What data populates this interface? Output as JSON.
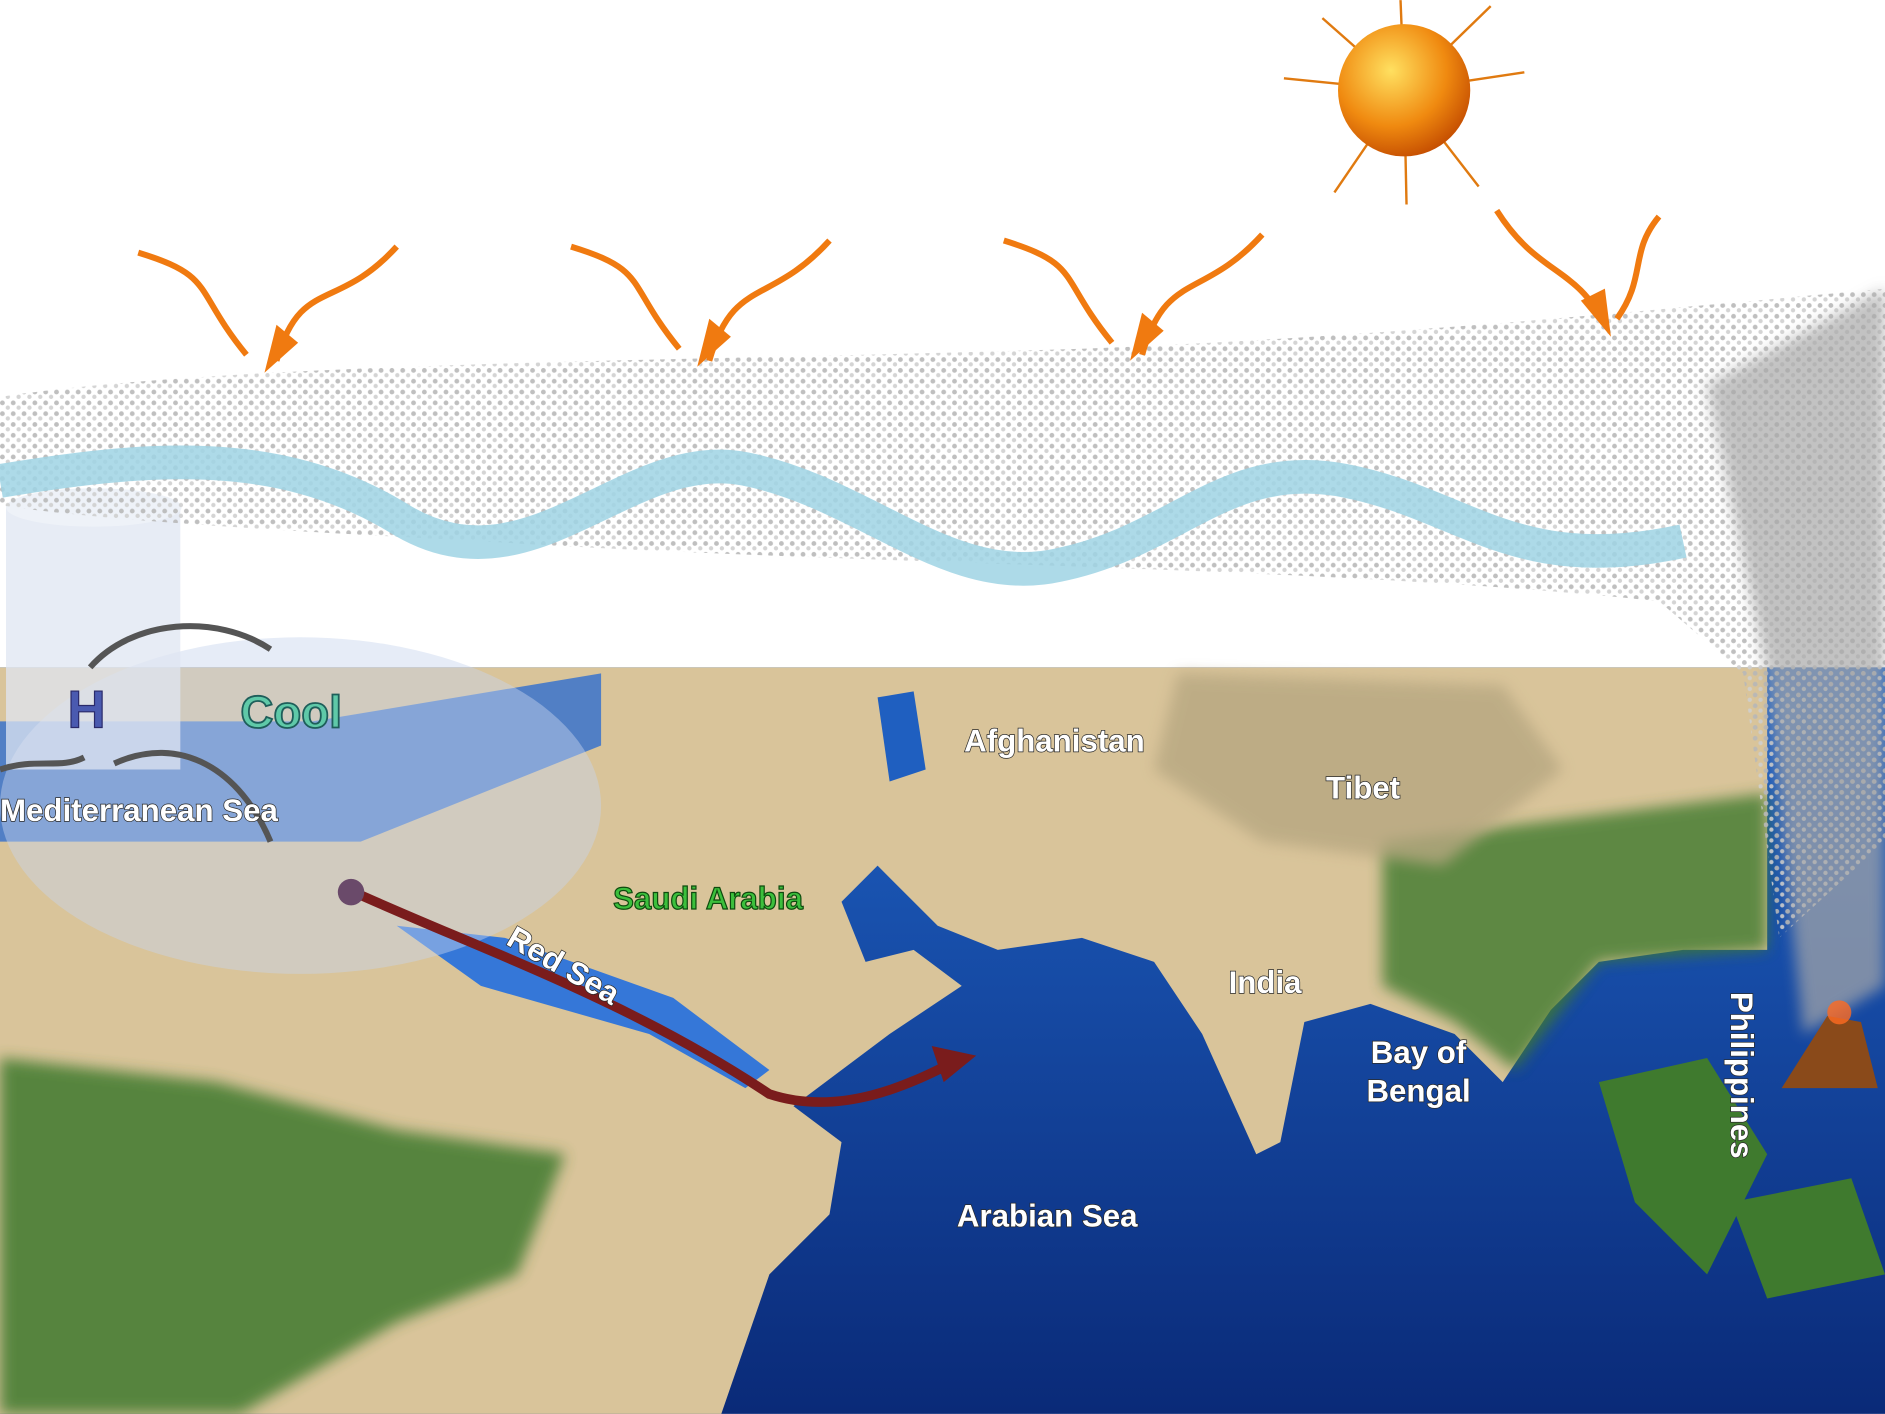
{
  "labels": {
    "high": "H",
    "cool": "Cool",
    "mediterranean": "Mediterranean Sea",
    "afghanistan": "Afghanistan",
    "tibet": "Tibet",
    "saudi_arabia": "Saudi Arabia",
    "red_sea": "Red Sea",
    "india": "India",
    "bay_of_bengal": [
      "Bay of",
      "Bengal"
    ],
    "arabian_sea": "Arabian Sea",
    "philippines": "Philippines"
  }
}
